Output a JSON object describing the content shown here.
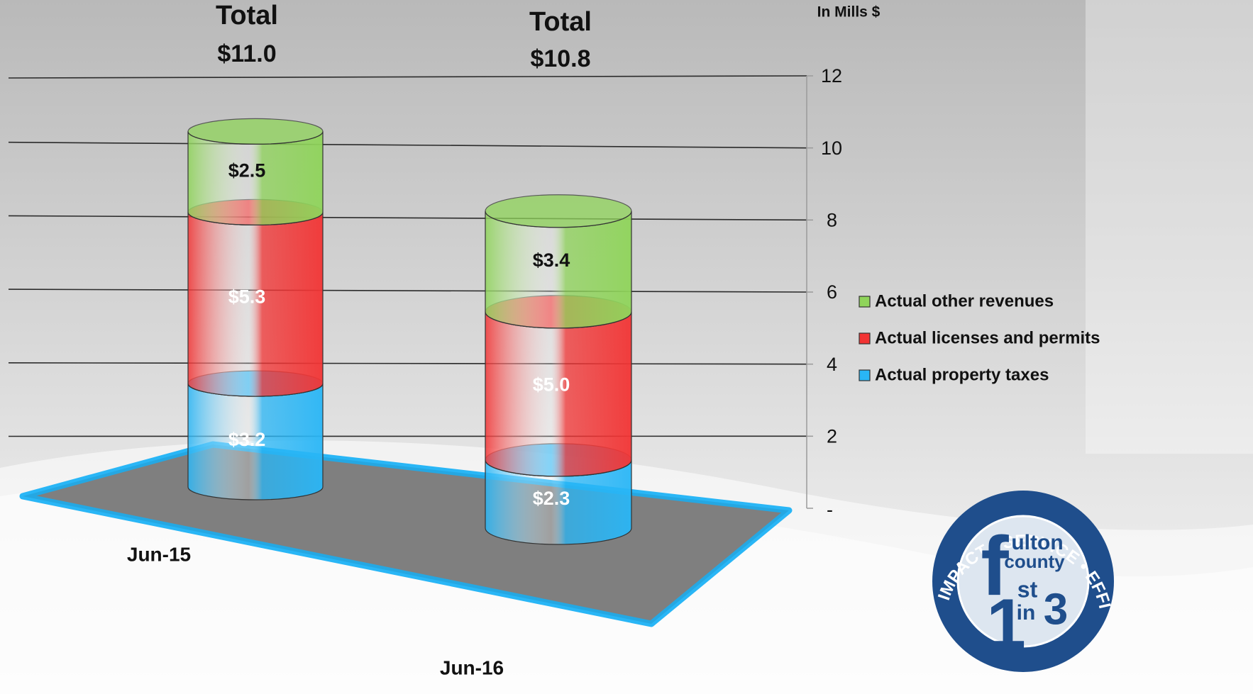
{
  "chart_data": {
    "type": "bar",
    "stacked": true,
    "style": "3d-cylinder",
    "unit_label": "In Mills $",
    "categories": [
      "Jun-15",
      "Jun-16"
    ],
    "series": [
      {
        "name": "Actual property taxes",
        "values": [
          3.2,
          2.3
        ],
        "labels": [
          "$3.2",
          "$2.3"
        ],
        "color": "#29b6f6"
      },
      {
        "name": "Actual licenses and permits",
        "values": [
          5.3,
          5.0
        ],
        "labels": [
          "$5.3",
          "$5.0"
        ],
        "color": "#f23434"
      },
      {
        "name": "Actual other revenues",
        "values": [
          2.5,
          3.4
        ],
        "labels": [
          "$2.5",
          "$3.4"
        ],
        "color": "#8fd45a"
      }
    ],
    "totals": [
      {
        "heading": "Total",
        "value": 11.0,
        "label": "$11.0"
      },
      {
        "heading": "Total",
        "value": 10.8,
        "label": "$10.8"
      }
    ],
    "ylim": [
      0,
      12
    ],
    "yticks": [
      {
        "value": 0,
        "label": "-"
      },
      {
        "value": 2,
        "label": "2"
      },
      {
        "value": 4,
        "label": "4"
      },
      {
        "value": 6,
        "label": "6"
      },
      {
        "value": 8,
        "label": "8"
      },
      {
        "value": 10,
        "label": "10"
      },
      {
        "value": 12,
        "label": "12"
      }
    ],
    "grid": true,
    "legend_position": "right",
    "floor_color": "#8a8a8a",
    "floor_border_color": "#29b6f6"
  },
  "logo": {
    "ring_text": "IMPACT • SERVICE • EFFICIENCY",
    "line1": "ulton",
    "line2": "county",
    "line3": "st",
    "line4": "in",
    "big_letter": "f",
    "big_number": "1",
    "small_number": "3",
    "ring_color": "#1f4e8c"
  }
}
